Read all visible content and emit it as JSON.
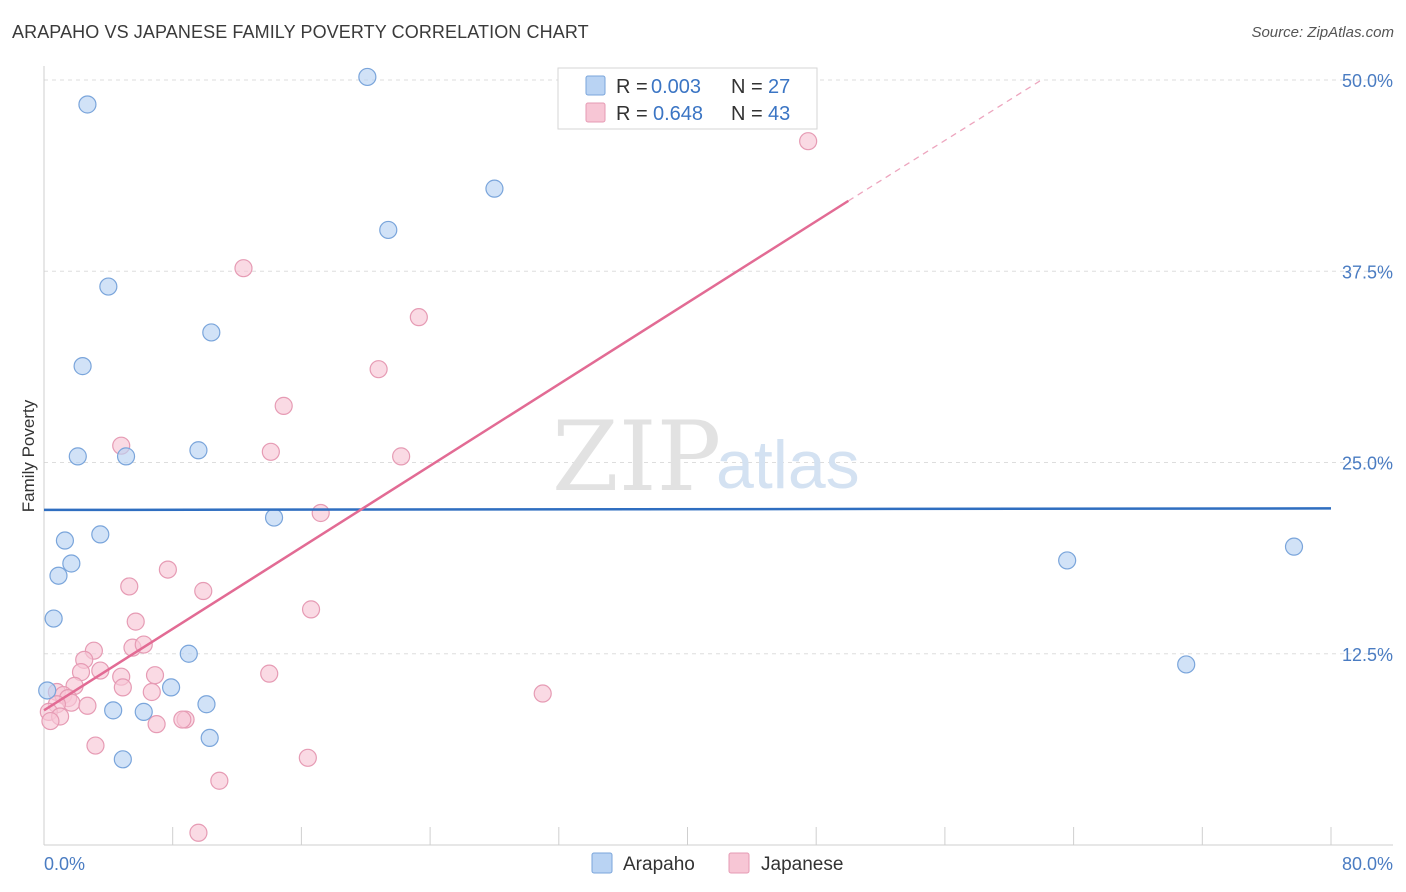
{
  "title": "ARAPAHO VS JAPANESE FAMILY POVERTY CORRELATION CHART",
  "source": "Source: ZipAtlas.com",
  "watermark": {
    "zip": "ZIP",
    "atlas": "atlas"
  },
  "colors": {
    "arapaho_fill": "#b9d3f3",
    "arapaho_stroke": "#7aa5db",
    "arapaho_line": "#2f6ec0",
    "japanese_fill": "#f7c6d5",
    "japanese_stroke": "#e69bb4",
    "japanese_line": "#e26b94",
    "tick_text": "#4a7cc2",
    "grid": "#dddddd"
  },
  "legend": {
    "rows": [
      {
        "r_label": "R = ",
        "r_value": "0.003",
        "n_label": "N = ",
        "n_value": "27"
      },
      {
        "r_label": "R = ",
        "r_value": "0.648",
        "n_label": "N = ",
        "n_value": "43"
      }
    ]
  },
  "bottom_legend": {
    "arapaho": "Arapaho",
    "japanese": "Japanese"
  },
  "chart_data": {
    "type": "scatter",
    "title": "ARAPAHO VS JAPANESE FAMILY POVERTY CORRELATION CHART",
    "xlabel": "",
    "ylabel": "Family Poverty",
    "xlim": [
      0,
      80
    ],
    "ylim": [
      0,
      50
    ],
    "x_tick_labels": {
      "min": "0.0%",
      "max": "80.0%"
    },
    "y_ticks": [
      12.5,
      25.0,
      37.5,
      50.0
    ],
    "y_tick_labels": [
      "12.5%",
      "25.0%",
      "37.5%",
      "50.0%"
    ],
    "series": [
      {
        "name": "Arapaho",
        "r": 0.003,
        "n": 27,
        "trend": {
          "x0": 0,
          "y0": 21.9,
          "x1": 80,
          "y1": 22.0
        },
        "points": [
          [
            2.7,
            48.4
          ],
          [
            20.1,
            50.2
          ],
          [
            28.0,
            42.9
          ],
          [
            21.4,
            40.2
          ],
          [
            4.0,
            36.5
          ],
          [
            10.4,
            33.5
          ],
          [
            2.4,
            31.3
          ],
          [
            2.1,
            25.4
          ],
          [
            5.1,
            25.4
          ],
          [
            9.6,
            25.8
          ],
          [
            3.5,
            20.3
          ],
          [
            1.3,
            19.9
          ],
          [
            1.7,
            18.4
          ],
          [
            0.9,
            17.6
          ],
          [
            14.3,
            21.4
          ],
          [
            0.6,
            14.8
          ],
          [
            9.0,
            12.5
          ],
          [
            7.9,
            10.3
          ],
          [
            0.2,
            10.1
          ],
          [
            10.1,
            9.2
          ],
          [
            4.3,
            8.8
          ],
          [
            6.2,
            8.7
          ],
          [
            10.3,
            7.0
          ],
          [
            4.9,
            5.6
          ],
          [
            63.6,
            18.6
          ],
          [
            77.7,
            19.5
          ],
          [
            71.0,
            11.8
          ]
        ]
      },
      {
        "name": "Japanese",
        "r": 0.648,
        "n": 43,
        "trend": {
          "x0": 0,
          "y0": 8.8,
          "x1": 50,
          "y1": 42.1,
          "dash_to": {
            "x": 62.0,
            "y": 50.0
          }
        },
        "points": [
          [
            47.5,
            46.0
          ],
          [
            12.4,
            37.7
          ],
          [
            23.3,
            34.5
          ],
          [
            20.8,
            31.1
          ],
          [
            14.9,
            28.7
          ],
          [
            4.8,
            26.1
          ],
          [
            14.1,
            25.7
          ],
          [
            22.2,
            25.4
          ],
          [
            17.2,
            21.7
          ],
          [
            7.7,
            18.0
          ],
          [
            5.3,
            16.9
          ],
          [
            9.9,
            16.6
          ],
          [
            16.6,
            15.4
          ],
          [
            5.7,
            14.6
          ],
          [
            3.1,
            12.7
          ],
          [
            5.5,
            12.9
          ],
          [
            6.2,
            13.1
          ],
          [
            2.5,
            12.1
          ],
          [
            3.5,
            11.4
          ],
          [
            2.3,
            11.3
          ],
          [
            4.8,
            11.0
          ],
          [
            6.9,
            11.1
          ],
          [
            14.0,
            11.2
          ],
          [
            1.9,
            10.4
          ],
          [
            4.9,
            10.3
          ],
          [
            0.8,
            10.0
          ],
          [
            1.2,
            9.8
          ],
          [
            1.5,
            9.6
          ],
          [
            6.7,
            10.0
          ],
          [
            31.0,
            9.9
          ],
          [
            1.7,
            9.3
          ],
          [
            0.8,
            9.2
          ],
          [
            2.7,
            9.1
          ],
          [
            0.3,
            8.7
          ],
          [
            1.0,
            8.4
          ],
          [
            0.4,
            8.1
          ],
          [
            7.0,
            7.9
          ],
          [
            8.8,
            8.2
          ],
          [
            8.6,
            8.2
          ],
          [
            3.2,
            6.5
          ],
          [
            16.4,
            5.7
          ],
          [
            10.9,
            4.2
          ],
          [
            9.6,
            0.8
          ]
        ]
      }
    ]
  }
}
